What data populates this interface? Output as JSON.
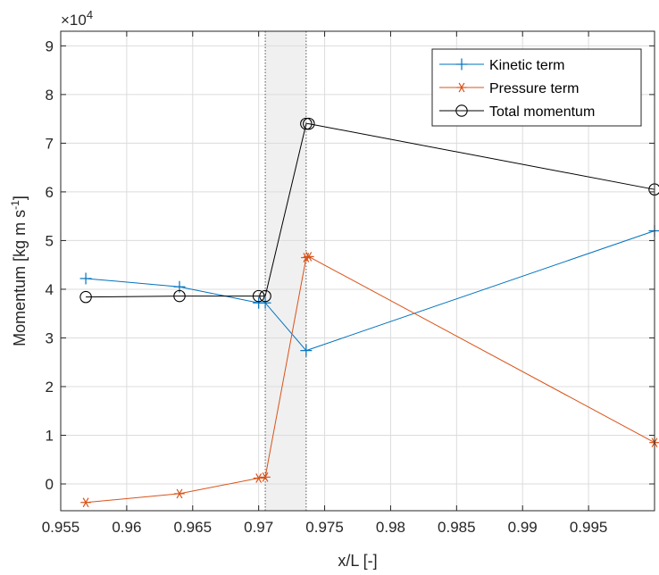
{
  "chart_data": {
    "type": "line",
    "xlabel": "x/L [-]",
    "ylabel_main": "Momentum [kg m s",
    "ylabel_sup": "-1",
    "ylabel_close": "]",
    "y_exponent_prefix": "×10",
    "y_exponent_power": "4",
    "y_multiplier": 10000,
    "xlim": [
      0.955,
      1.0
    ],
    "ylim": [
      -0.55,
      9.3
    ],
    "xticks": [
      0.955,
      0.96,
      0.965,
      0.97,
      0.975,
      0.98,
      0.985,
      0.99,
      0.995
    ],
    "xtick_labels": [
      "0.955",
      "0.96",
      "0.965",
      "0.97",
      "0.975",
      "0.98",
      "0.985",
      "0.99",
      "0.995"
    ],
    "yticks": [
      0,
      1,
      2,
      3,
      4,
      5,
      6,
      7,
      8,
      9
    ],
    "ytick_labels": [
      "0",
      "1",
      "2",
      "3",
      "4",
      "5",
      "6",
      "7",
      "8",
      "9"
    ],
    "grid": true,
    "legend_position": "top-right",
    "shaded_region": {
      "x": [
        0.9705,
        0.9736
      ],
      "color": "#f0f0f0",
      "edge_color": "#555555"
    },
    "series": [
      {
        "name": "Kinetic term",
        "color": "#0072BD",
        "marker": "plus",
        "x": [
          0.9569,
          0.964,
          0.97,
          0.9705,
          0.9736,
          1.0
        ],
        "y": [
          4.22,
          4.05,
          3.72,
          3.72,
          2.74,
          5.2
        ]
      },
      {
        "name": "Pressure term",
        "color": "#D95319",
        "marker": "asterisk",
        "x": [
          0.9569,
          0.964,
          0.97,
          0.9705,
          0.9736,
          0.9738,
          1.0
        ],
        "y": [
          -0.38,
          -0.2,
          0.12,
          0.14,
          4.65,
          4.67,
          0.85
        ]
      },
      {
        "name": "Total momentum",
        "color": "#000000",
        "marker": "circle",
        "x": [
          0.9569,
          0.964,
          0.97,
          0.9705,
          0.9736,
          0.9738,
          1.0
        ],
        "y": [
          3.84,
          3.86,
          3.86,
          3.86,
          7.4,
          7.4,
          6.05
        ]
      }
    ]
  }
}
